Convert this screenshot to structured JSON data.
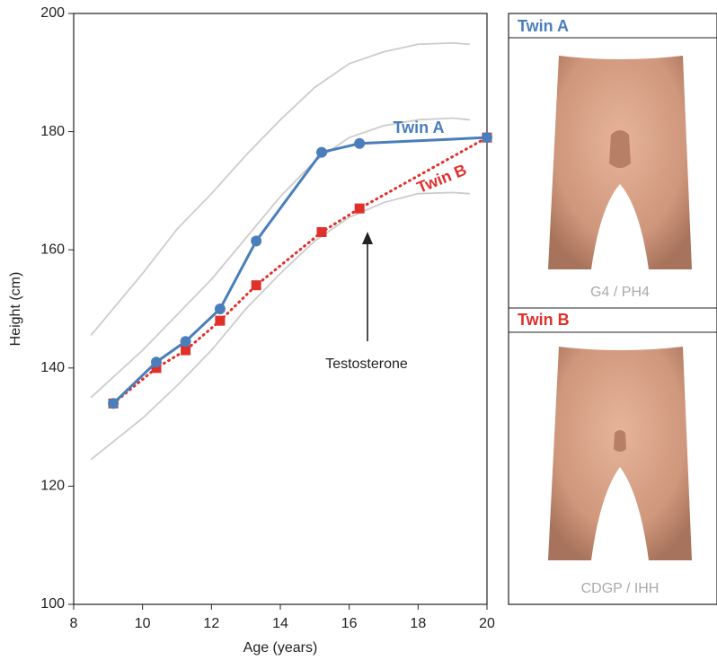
{
  "chart_data": {
    "type": "line",
    "xlabel": "Age (years)",
    "ylabel": "Height (cm)",
    "xlim": [
      8,
      20
    ],
    "xticks": [
      8,
      10,
      12,
      14,
      16,
      18,
      20
    ],
    "ylim": [
      100,
      200
    ],
    "yticks": [
      100,
      120,
      140,
      160,
      180,
      200
    ],
    "series": [
      {
        "color": "#cccccc",
        "style": "reference",
        "x": [
          8.5,
          10,
          11,
          12,
          13,
          14,
          15,
          16,
          17,
          18,
          19,
          19.5
        ],
        "values": [
          145.5,
          156,
          163.5,
          169.5,
          176,
          182,
          187.5,
          191.5,
          193.5,
          194.8,
          195,
          194.8
        ]
      },
      {
        "color": "#cccccc",
        "style": "reference",
        "x": [
          8.5,
          10,
          11,
          12,
          13,
          14,
          15,
          16,
          17,
          18,
          19,
          19.5
        ],
        "values": [
          135,
          143,
          149,
          155,
          162,
          169,
          175,
          179,
          181,
          182,
          182.3,
          182
        ]
      },
      {
        "color": "#cccccc",
        "style": "reference",
        "x": [
          8.5,
          10,
          11,
          12,
          13,
          14,
          15,
          16,
          17,
          18,
          19,
          19.5
        ],
        "values": [
          124.5,
          131.5,
          137,
          143,
          150,
          156,
          161.5,
          165.5,
          168,
          169.5,
          169.7,
          169.5
        ]
      },
      {
        "name": "Twin B",
        "color": "#e0302a",
        "style": "dotted",
        "marker": "square",
        "x": [
          9.15,
          10.4,
          11.25,
          12.25,
          13.3,
          15.2,
          16.3,
          20
        ],
        "values": [
          134,
          140,
          143,
          148,
          154,
          163,
          167,
          179
        ]
      },
      {
        "name": "Twin A",
        "color": "#4a7ebb",
        "style": "solid",
        "marker": "circle",
        "x": [
          9.15,
          10.4,
          11.25,
          12.25,
          13.3,
          15.2,
          16.3,
          20
        ],
        "values": [
          134,
          141,
          144.5,
          150,
          161.5,
          176.5,
          178,
          179
        ]
      }
    ],
    "annotations": [
      {
        "text": "Testosterone"
      }
    ]
  },
  "panels": [
    {
      "title": "Twin A",
      "color": "#4a7ebb",
      "caption": "G4 / PH4"
    },
    {
      "title": "Twin B",
      "color": "#e0302a",
      "caption": "CDGP / IHH"
    }
  ]
}
